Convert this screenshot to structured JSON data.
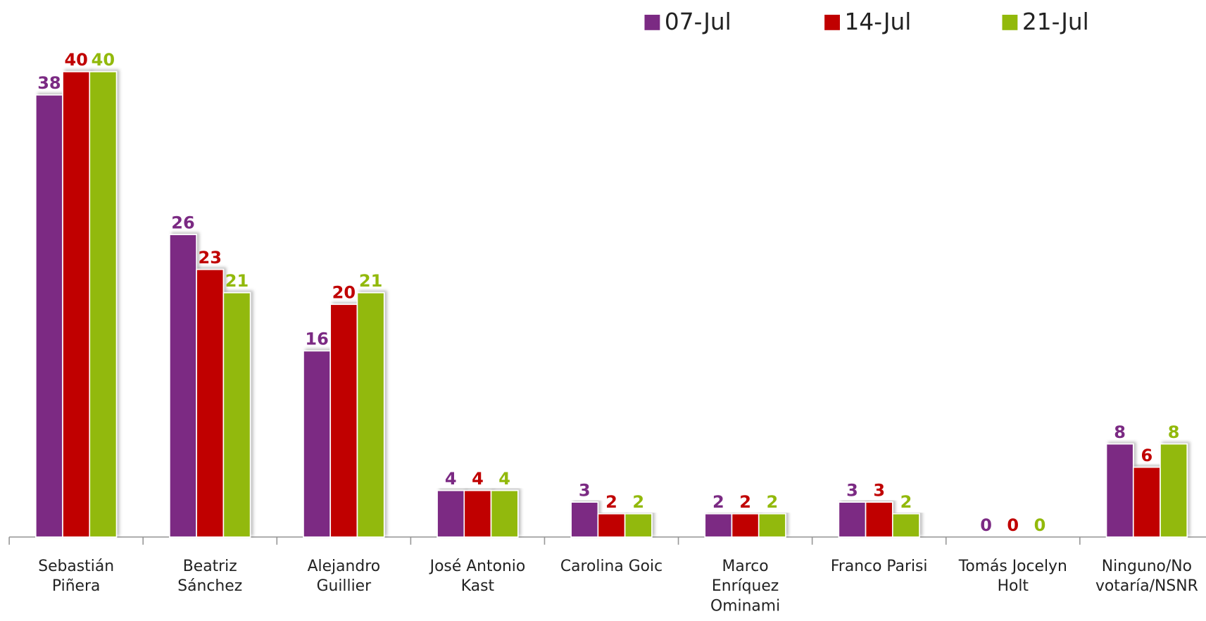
{
  "chart_data": {
    "type": "bar",
    "categories": [
      "Sebastián\nPiñera",
      "Beatriz\nSánchez",
      "Alejandro\nGuillier",
      "José Antonio\nKast",
      "Carolina Goic",
      "Marco\nEnríquez\nOminami",
      "Franco Parisi",
      "Tomás Jocelyn\nHolt",
      "Ninguno/No\nvotaría/NSNR"
    ],
    "series": [
      {
        "name": "07-Jul",
        "color": "#7b2a83",
        "values": [
          38,
          26,
          16,
          4,
          3,
          2,
          3,
          0,
          8
        ]
      },
      {
        "name": "14-Jul",
        "color": "#c00000",
        "values": [
          40,
          23,
          20,
          4,
          2,
          2,
          3,
          0,
          6
        ]
      },
      {
        "name": "21-Jul",
        "color": "#92b90b",
        "values": [
          40,
          21,
          21,
          4,
          2,
          2,
          2,
          0,
          8
        ]
      }
    ],
    "ylim": [
      0,
      40
    ],
    "legend": "top-right"
  }
}
